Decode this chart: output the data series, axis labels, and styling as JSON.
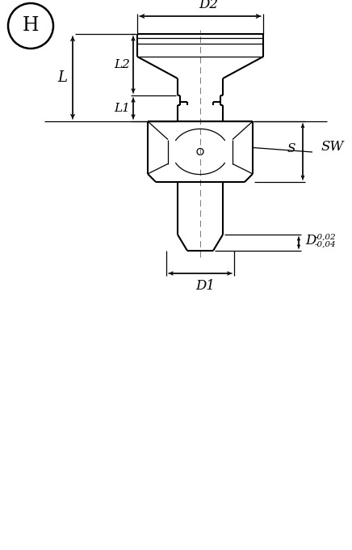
{
  "bg_color": "#ffffff",
  "line_color": "#000000",
  "title_letter": "H",
  "labels": {
    "D2": "D2",
    "D1": "D1",
    "D_tol": "D",
    "D_tol_sup": "-0,02",
    "D_tol_inf": "-0,04",
    "L": "L",
    "L1": "L1",
    "L2": "L2",
    "S": "S",
    "SW": "SW"
  },
  "figsize": [
    4.36,
    6.8
  ],
  "dpi": 100
}
